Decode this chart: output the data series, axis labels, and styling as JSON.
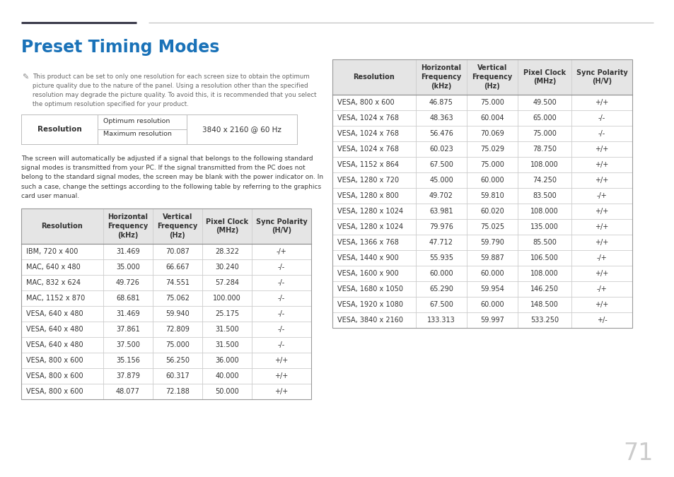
{
  "title": "Preset Timing Modes",
  "title_color": "#1a72b8",
  "page_number": "71",
  "note_text": "This product can be set to only one resolution for each screen size to obtain the optimum\npicture quality due to the nature of the panel. Using a resolution other than the specified\nresolution may degrade the picture quality. To avoid this, it is recommended that you select\nthe optimum resolution specified for your product.",
  "resolution_label": "Resolution",
  "optimum_label": "Optimum resolution",
  "maximum_label": "Maximum resolution",
  "resolution_value": "3840 x 2160 @ 60 Hz",
  "body_text": "The screen will automatically be adjusted if a signal that belongs to the following standard\nsignal modes is transmitted from your PC. If the signal transmitted from the PC does not\nbelong to the standard signal modes, the screen may be blank with the power indicator on. In\nsuch a case, change the settings according to the following table by referring to the graphics\ncard user manual.",
  "left_table_headers": [
    "Resolution",
    "Horizontal\nFrequency\n(kHz)",
    "Vertical\nFrequency\n(Hz)",
    "Pixel Clock\n(MHz)",
    "Sync Polarity\n(H/V)"
  ],
  "left_table_data": [
    [
      "IBM, 720 x 400",
      "31.469",
      "70.087",
      "28.322",
      "-/+"
    ],
    [
      "MAC, 640 x 480",
      "35.000",
      "66.667",
      "30.240",
      "-/-"
    ],
    [
      "MAC, 832 x 624",
      "49.726",
      "74.551",
      "57.284",
      "-/-"
    ],
    [
      "MAC, 1152 x 870",
      "68.681",
      "75.062",
      "100.000",
      "-/-"
    ],
    [
      "VESA, 640 x 480",
      "31.469",
      "59.940",
      "25.175",
      "-/-"
    ],
    [
      "VESA, 640 x 480",
      "37.861",
      "72.809",
      "31.500",
      "-/-"
    ],
    [
      "VESA, 640 x 480",
      "37.500",
      "75.000",
      "31.500",
      "-/-"
    ],
    [
      "VESA, 800 x 600",
      "35.156",
      "56.250",
      "36.000",
      "+/+"
    ],
    [
      "VESA, 800 x 600",
      "37.879",
      "60.317",
      "40.000",
      "+/+"
    ],
    [
      "VESA, 800 x 600",
      "48.077",
      "72.188",
      "50.000",
      "+/+"
    ]
  ],
  "right_table_headers": [
    "Resolution",
    "Horizontal\nFrequency\n(kHz)",
    "Vertical\nFrequency\n(Hz)",
    "Pixel Clock\n(MHz)",
    "Sync Polarity\n(H/V)"
  ],
  "right_table_data": [
    [
      "VESA, 800 x 600",
      "46.875",
      "75.000",
      "49.500",
      "+/+"
    ],
    [
      "VESA, 1024 x 768",
      "48.363",
      "60.004",
      "65.000",
      "-/-"
    ],
    [
      "VESA, 1024 x 768",
      "56.476",
      "70.069",
      "75.000",
      "-/-"
    ],
    [
      "VESA, 1024 x 768",
      "60.023",
      "75.029",
      "78.750",
      "+/+"
    ],
    [
      "VESA, 1152 x 864",
      "67.500",
      "75.000",
      "108.000",
      "+/+"
    ],
    [
      "VESA, 1280 x 720",
      "45.000",
      "60.000",
      "74.250",
      "+/+"
    ],
    [
      "VESA, 1280 x 800",
      "49.702",
      "59.810",
      "83.500",
      "-/+"
    ],
    [
      "VESA, 1280 x 1024",
      "63.981",
      "60.020",
      "108.000",
      "+/+"
    ],
    [
      "VESA, 1280 x 1024",
      "79.976",
      "75.025",
      "135.000",
      "+/+"
    ],
    [
      "VESA, 1366 x 768",
      "47.712",
      "59.790",
      "85.500",
      "+/+"
    ],
    [
      "VESA, 1440 x 900",
      "55.935",
      "59.887",
      "106.500",
      "-/+"
    ],
    [
      "VESA, 1600 x 900",
      "60.000",
      "60.000",
      "108.000",
      "+/+"
    ],
    [
      "VESA, 1680 x 1050",
      "65.290",
      "59.954",
      "146.250",
      "-/+"
    ],
    [
      "VESA, 1920 x 1080",
      "67.500",
      "60.000",
      "148.500",
      "+/+"
    ],
    [
      "VESA, 3840 x 2160",
      "133.313",
      "59.997",
      "533.250",
      "+/-"
    ]
  ],
  "bg_color": "#ffffff",
  "header_bg": "#e5e5e5",
  "text_color": "#333333",
  "header_text_color": "#333333",
  "line_color": "#cccccc",
  "dark_line_color": "#555555",
  "thin_line_color": "#bbbbbb"
}
